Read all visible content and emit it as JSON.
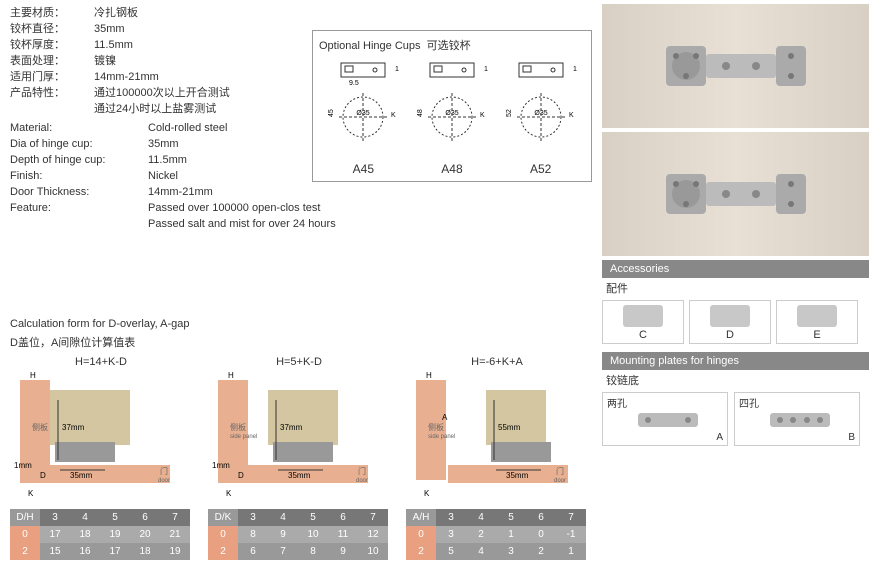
{
  "specs_cn": {
    "material_label": "主要材质：",
    "material_val": "冷扎钢板",
    "dia_label": "铰杯直径：",
    "dia_val": "35mm",
    "depth_label": "铰杯厚度：",
    "depth_val": "11.5mm",
    "finish_label": "表面处理：",
    "finish_val": "镀镍",
    "thick_label": "适用门厚：",
    "thick_val": "14mm-21mm",
    "feature_label": "产品特性：",
    "feature_val": "通过100000次以上开合测试",
    "feature_val2": "通过24小时以上盐雾测试"
  },
  "specs_en": {
    "material_label": "Material:",
    "material_val": "Cold-rolled steel",
    "dia_label": "Dia of hinge cup:",
    "dia_val": "35mm",
    "depth_label": "Depth of hinge cup:",
    "depth_val": "11.5mm",
    "finish_label": "Finish:",
    "finish_val": "Nickel",
    "thick_label": "Door Thickness:",
    "thick_val": "14mm-21mm",
    "feature_label": "Feature:",
    "feature_val": "Passed over 100000 open-clos test",
    "feature_val2": "Passed salt and mist for over 24 hours"
  },
  "hinge_box": {
    "title_en": "Optional Hinge Cups",
    "title_cn": "可选铰杯",
    "cups": [
      {
        "label": "A45",
        "h": "45",
        "w": "9.5",
        "t": "11.3",
        "d": "Ø35"
      },
      {
        "label": "A48",
        "h": "48",
        "t": "11.3",
        "d": "Ø35"
      },
      {
        "label": "A52",
        "h": "52",
        "t": "11.3",
        "d": "Ø35"
      }
    ]
  },
  "calc": {
    "title": "Calculation form for D-overlay, A-gap",
    "title_cn": "D盖位，A间隙位计算值表",
    "cols": [
      {
        "formula": "H=14+K-D",
        "dim_v": "37mm",
        "dim_h": "35mm",
        "gap": "1mm",
        "side_cn": "侧板",
        "door_cn": "门",
        "door_en": "door",
        "hdr_label": "D/H",
        "hdr": [
          "3",
          "4",
          "5",
          "6",
          "7"
        ],
        "r0_label": "0",
        "r0": [
          "17",
          "18",
          "19",
          "20",
          "21"
        ],
        "r2_label": "2",
        "r2": [
          "15",
          "16",
          "17",
          "18",
          "19"
        ]
      },
      {
        "formula": "H=5+K-D",
        "dim_v": "37mm",
        "dim_h": "35mm",
        "gap": "1mm",
        "side_cn": "侧板",
        "side_en": "side panel",
        "door_cn": "门",
        "door_en": "door",
        "hdr_label": "D/K",
        "hdr": [
          "3",
          "4",
          "5",
          "6",
          "7"
        ],
        "r0_label": "0",
        "r0": [
          "8",
          "9",
          "10",
          "11",
          "12"
        ],
        "r2_label": "2",
        "r2": [
          "6",
          "7",
          "8",
          "9",
          "10"
        ]
      },
      {
        "formula": "H=-6+K+A",
        "dim_v": "55mm",
        "dim_h": "35mm",
        "side_cn": "侧板",
        "side_en": "side panel",
        "door_cn": "门",
        "door_en": "door",
        "hdr_label": "A/H",
        "hdr": [
          "3",
          "4",
          "5",
          "6",
          "7"
        ],
        "r0_label": "0",
        "r0": [
          "3",
          "2",
          "1",
          "0",
          "-1"
        ],
        "r2_label": "2",
        "r2": [
          "5",
          "4",
          "3",
          "2",
          "1"
        ]
      }
    ]
  },
  "accessories": {
    "title_en": "Accessories",
    "title_cn": "配件",
    "items": [
      {
        "label": "C"
      },
      {
        "label": "D"
      },
      {
        "label": "E"
      }
    ]
  },
  "mounting": {
    "title_en": "Mounting plates for hinges",
    "title_cn": "铰链底",
    "items": [
      {
        "label_cn": "两孔",
        "letter": "A"
      },
      {
        "label_cn": "四孔",
        "letter": "B"
      }
    ]
  },
  "colors": {
    "diag_bg": "#e8b090",
    "diag_part": "#c0b080",
    "metal": "#b8b8b8",
    "table_hdr": "#777777",
    "table_row": "#aaaaaa",
    "table_side": "#e8a080"
  }
}
